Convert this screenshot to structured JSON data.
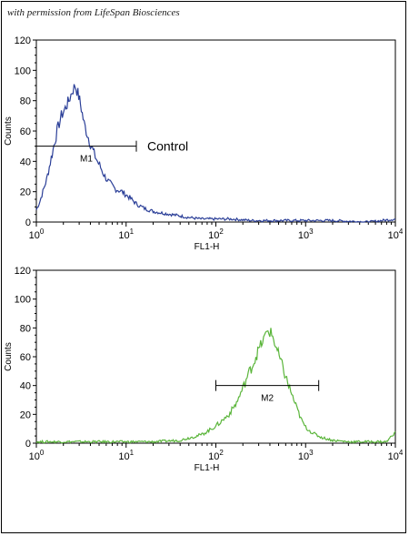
{
  "credit_text": "with permission from LifeSpan Biosciences",
  "chart_data": [
    {
      "type": "line",
      "series_color": "#2b3f98",
      "xlabel": "FL1-H",
      "ylabel": "Counts",
      "xscale": "log",
      "xlim": [
        1,
        10000
      ],
      "ylim": [
        0,
        120
      ],
      "yticks": [
        0,
        20,
        40,
        60,
        80,
        100,
        120
      ],
      "xticks": [
        1,
        10,
        100,
        1000,
        10000
      ],
      "xtick_labels": [
        {
          "base": "10",
          "exp": "0"
        },
        {
          "base": "10",
          "exp": "1"
        },
        {
          "base": "10",
          "exp": "2"
        },
        {
          "base": "10",
          "exp": "3"
        },
        {
          "base": "10",
          "exp": "4"
        }
      ],
      "gate": {
        "label": "M1",
        "x_start": 1,
        "x_end": 13,
        "y": 50
      },
      "annotation": "Control",
      "peak": {
        "x": 2.8,
        "y": 90
      },
      "x": [
        1.0,
        1.1,
        1.3,
        1.5,
        1.7,
        1.9,
        2.1,
        2.3,
        2.5,
        2.7,
        2.9,
        3.1,
        3.4,
        3.7,
        4.0,
        4.4,
        4.8,
        5.2,
        5.8,
        6.5,
        7.5,
        9,
        11,
        13,
        16,
        20,
        25,
        32,
        40,
        50,
        70,
        100,
        150,
        250,
        400,
        700,
        1000,
        2000,
        5000,
        10000
      ],
      "values": [
        8,
        14,
        28,
        45,
        60,
        70,
        75,
        80,
        86,
        90,
        85,
        78,
        65,
        58,
        52,
        45,
        40,
        36,
        30,
        26,
        22,
        20,
        16,
        12,
        9,
        7,
        6,
        5,
        4,
        3,
        2,
        2,
        2,
        1,
        1,
        1,
        1,
        1,
        0,
        2
      ]
    },
    {
      "type": "line",
      "series_color": "#5ab53a",
      "xlabel": "FL1-H",
      "ylabel": "Counts",
      "xscale": "log",
      "xlim": [
        1,
        10000
      ],
      "ylim": [
        0,
        120
      ],
      "yticks": [
        0,
        20,
        40,
        60,
        80,
        100,
        120
      ],
      "xticks": [
        1,
        10,
        100,
        1000,
        10000
      ],
      "xtick_labels": [
        {
          "base": "10",
          "exp": "0"
        },
        {
          "base": "10",
          "exp": "1"
        },
        {
          "base": "10",
          "exp": "2"
        },
        {
          "base": "10",
          "exp": "3"
        },
        {
          "base": "10",
          "exp": "4"
        }
      ],
      "gate": {
        "label": "M2",
        "x_start": 100,
        "x_end": 1400,
        "y": 40
      },
      "annotation": "",
      "peak": {
        "x": 400,
        "y": 78
      },
      "x": [
        1,
        2,
        5,
        10,
        20,
        40,
        70,
        90,
        110,
        140,
        170,
        200,
        230,
        260,
        300,
        340,
        380,
        420,
        460,
        520,
        600,
        700,
        800,
        900,
        1000,
        1200,
        1500,
        2000,
        3000,
        5000,
        8000,
        10000
      ],
      "values": [
        1,
        1,
        1,
        1,
        1,
        2,
        6,
        10,
        14,
        20,
        28,
        38,
        48,
        55,
        65,
        72,
        78,
        76,
        68,
        58,
        46,
        34,
        24,
        16,
        11,
        7,
        4,
        2,
        1,
        1,
        1,
        8
      ]
    }
  ]
}
